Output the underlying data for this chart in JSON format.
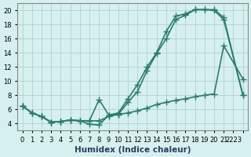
{
  "bg_color": "#d6f0ef",
  "grid_color": "#b0d0ce",
  "line_color": "#2d7d6e",
  "marker": "+",
  "markersize": 6,
  "linewidth": 1.2,
  "xlabel": "Humidex (Indice chaleur)",
  "xlabel_fontsize": 7.5,
  "tick_fontsize": 6,
  "xlim": [
    -0.5,
    23.5
  ],
  "ylim": [
    3,
    21
  ],
  "yticks": [
    4,
    6,
    8,
    10,
    12,
    14,
    16,
    18,
    20
  ],
  "xtick_positions": [
    0,
    1,
    2,
    3,
    4,
    5,
    6,
    7,
    8,
    9,
    10,
    11,
    12,
    13,
    14,
    15,
    16,
    17,
    18,
    19,
    20,
    21,
    22,
    23
  ],
  "xtick_labels": [
    "0",
    "1",
    "2",
    "3",
    "4",
    "5",
    "6",
    "7",
    "8",
    "9",
    "10",
    "11",
    "12",
    "13",
    "14",
    "15",
    "16",
    "17",
    "18",
    "19",
    "20",
    "21",
    "2223",
    ""
  ],
  "series1_x": [
    0,
    1,
    2,
    3,
    4,
    5,
    6,
    7,
    8,
    9,
    10,
    11,
    12,
    13,
    14,
    15,
    16,
    17,
    18,
    19,
    20,
    21,
    23
  ],
  "series1_y": [
    6.5,
    5.5,
    5.0,
    4.2,
    4.3,
    4.5,
    4.4,
    3.9,
    3.8,
    5.2,
    5.3,
    7.0,
    8.5,
    11.5,
    13.9,
    16.0,
    18.7,
    19.3,
    20.1,
    20.1,
    20.0,
    18.7,
    8.0
  ],
  "series2_x": [
    0,
    1,
    2,
    3,
    4,
    5,
    6,
    7,
    8,
    9,
    10,
    11,
    12,
    13,
    14,
    15,
    16,
    17,
    18,
    19,
    20,
    21,
    23
  ],
  "series2_y": [
    6.5,
    5.5,
    5.0,
    4.2,
    4.3,
    4.5,
    4.4,
    4.4,
    7.4,
    5.2,
    5.5,
    7.5,
    9.5,
    12.0,
    14.0,
    17.0,
    19.2,
    19.5,
    20.1,
    20.1,
    20.1,
    19.0,
    8.0
  ],
  "series3_x": [
    0,
    1,
    2,
    3,
    4,
    5,
    6,
    7,
    8,
    9,
    10,
    11,
    12,
    13,
    14,
    15,
    16,
    17,
    18,
    19,
    20,
    21,
    23
  ],
  "series3_y": [
    6.5,
    5.5,
    5.0,
    4.2,
    4.3,
    4.5,
    4.4,
    4.4,
    4.4,
    5.0,
    5.3,
    5.5,
    5.8,
    6.2,
    6.7,
    7.0,
    7.3,
    7.5,
    7.8,
    8.0,
    8.2,
    15.0,
    10.3
  ]
}
